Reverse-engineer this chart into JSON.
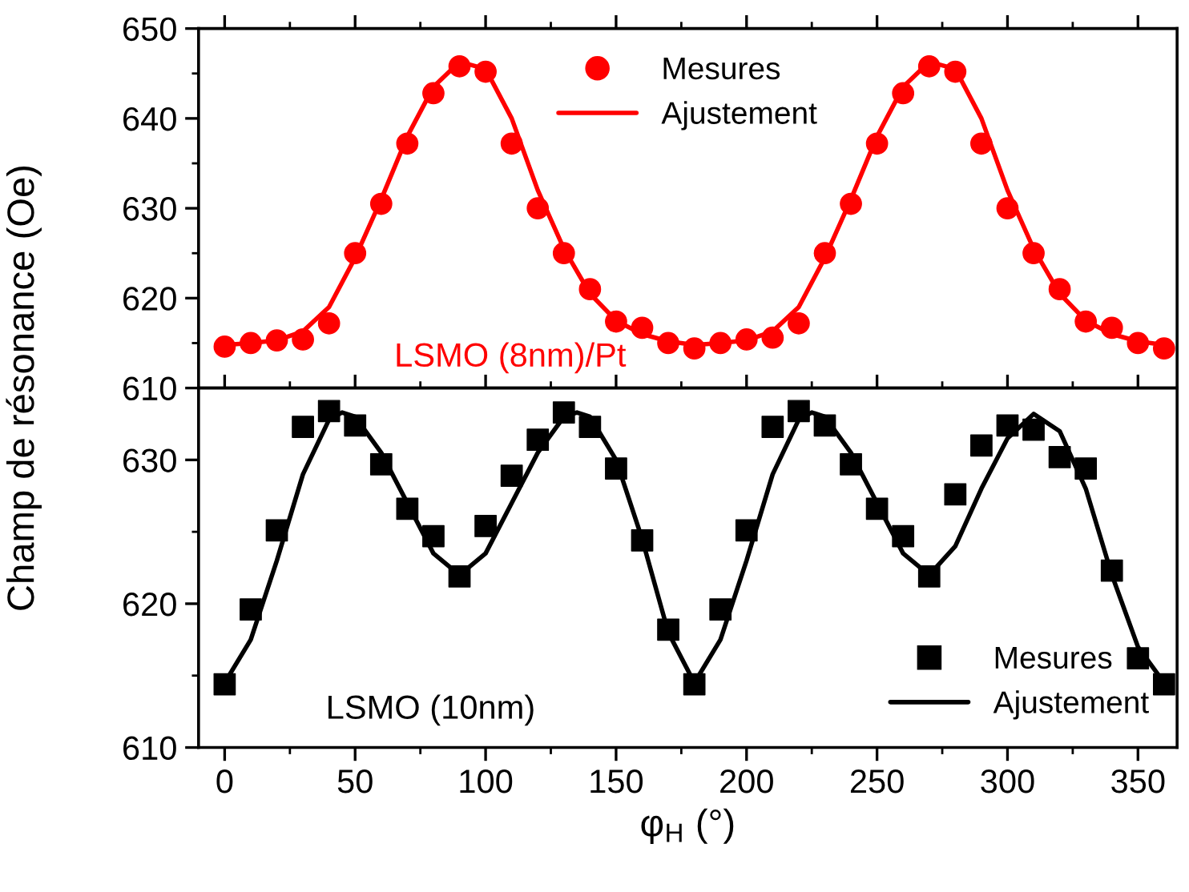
{
  "chart_data": [
    {
      "type": "scatter",
      "ylabel": "Champ de résonance (Oe)",
      "xlim": [
        -10,
        365
      ],
      "xticks": [
        0,
        50,
        100,
        150,
        200,
        250,
        300,
        350
      ],
      "ylim": [
        610,
        650
      ],
      "yticks": [
        610,
        620,
        630,
        640,
        650
      ],
      "tick_labels": "y",
      "legend": "top",
      "grid": false,
      "annotations": [
        "LSMO (8nm)/Pt"
      ],
      "series": [
        {
          "name": "Mesures",
          "marker": "circle",
          "color": "#ff0000",
          "x": [
            0,
            10,
            20,
            30,
            40,
            50,
            60,
            70,
            80,
            90,
            100,
            110,
            120,
            130,
            140,
            150,
            160,
            170,
            180,
            190,
            200,
            210,
            220,
            230,
            240,
            250,
            260,
            270,
            280,
            290,
            300,
            310,
            320,
            330,
            340,
            350,
            360
          ],
          "values": [
            614.6,
            615,
            615.3,
            615.4,
            617.2,
            625,
            630.5,
            637.2,
            642.8,
            645.8,
            645.2,
            637.2,
            630,
            625,
            621,
            617.4,
            616.7,
            615,
            614.4,
            615,
            615.4,
            615.6,
            617.2,
            625,
            630.5,
            637.2,
            642.8,
            645.8,
            645.2,
            637.2,
            630,
            625,
            621,
            617.4,
            616.7,
            615,
            614.4
          ]
        },
        {
          "name": "Ajustement",
          "type": "line",
          "marker": "none",
          "line_style": "solid",
          "color": "#ff0000",
          "x": [
            0,
            10,
            20,
            30,
            40,
            50,
            60,
            70,
            80,
            90,
            100,
            110,
            120,
            130,
            140,
            150,
            160,
            170,
            180,
            190,
            200,
            210,
            220,
            230,
            240,
            250,
            260,
            270,
            280,
            290,
            300,
            310,
            320,
            330,
            340,
            350,
            360
          ],
          "values": [
            614.8,
            615,
            615.3,
            616.3,
            619,
            624.5,
            631,
            638,
            643.5,
            646.3,
            645.5,
            640,
            632,
            625.5,
            620.5,
            617.5,
            616,
            615.2,
            614.8,
            615,
            615.3,
            616.3,
            619,
            624.5,
            631,
            638,
            643.5,
            646.3,
            645.5,
            640,
            632,
            625.5,
            620.5,
            617.5,
            616,
            615.2,
            614.8
          ]
        }
      ]
    },
    {
      "type": "scatter",
      "xlabel": "φ$_{H}$ (°)",
      "xlim": [
        -10,
        365
      ],
      "xticks": [
        0,
        50,
        100,
        150,
        200,
        250,
        300,
        350
      ],
      "ylim": [
        610,
        635
      ],
      "yticks": [
        610,
        620,
        630
      ],
      "legend": "bottom right",
      "grid": false,
      "annotations": [
        "LSMO (10nm)"
      ],
      "series": [
        {
          "name": "Mesures",
          "marker": "square",
          "color": "#000000",
          "x": [
            0,
            10,
            20,
            30,
            40,
            50,
            60,
            70,
            80,
            90,
            100,
            110,
            120,
            130,
            140,
            150,
            160,
            170,
            180,
            190,
            200,
            210,
            220,
            230,
            240,
            250,
            260,
            270,
            280,
            290,
            300,
            310,
            320,
            330,
            340,
            350,
            360
          ],
          "values": [
            614.4,
            619.6,
            625.1,
            632.3,
            633.4,
            632.4,
            629.7,
            626.6,
            624.7,
            621.9,
            625.4,
            628.9,
            631.4,
            633.3,
            632.3,
            629.4,
            624.4,
            618.2,
            614.4,
            619.6,
            625.1,
            632.3,
            633.4,
            632.4,
            629.7,
            626.6,
            624.7,
            621.9,
            627.6,
            631,
            632.4,
            632.1,
            630.2,
            629.4,
            622.3,
            616.2,
            614.4
          ]
        },
        {
          "name": "Ajustement",
          "type": "line",
          "marker": "none",
          "line_style": "solid",
          "color": "#000000",
          "x": [
            0,
            10,
            20,
            30,
            40,
            45,
            50,
            60,
            70,
            80,
            90,
            100,
            110,
            120,
            130,
            135,
            140,
            150,
            160,
            170,
            180,
            190,
            200,
            210,
            220,
            225,
            230,
            240,
            250,
            260,
            270,
            280,
            290,
            300,
            310,
            320,
            330,
            340,
            350,
            360
          ],
          "values": [
            614.5,
            617.5,
            623,
            629,
            632.8,
            633.3,
            633,
            630.5,
            627,
            623.5,
            622,
            623.5,
            627,
            630.5,
            633,
            633.3,
            633,
            630,
            624.5,
            618,
            614.5,
            617.5,
            623,
            629,
            632.8,
            633.3,
            633,
            630.5,
            627,
            623.5,
            622,
            624,
            628,
            631.5,
            633.2,
            632,
            628,
            622,
            617,
            614.5
          ]
        }
      ]
    }
  ]
}
